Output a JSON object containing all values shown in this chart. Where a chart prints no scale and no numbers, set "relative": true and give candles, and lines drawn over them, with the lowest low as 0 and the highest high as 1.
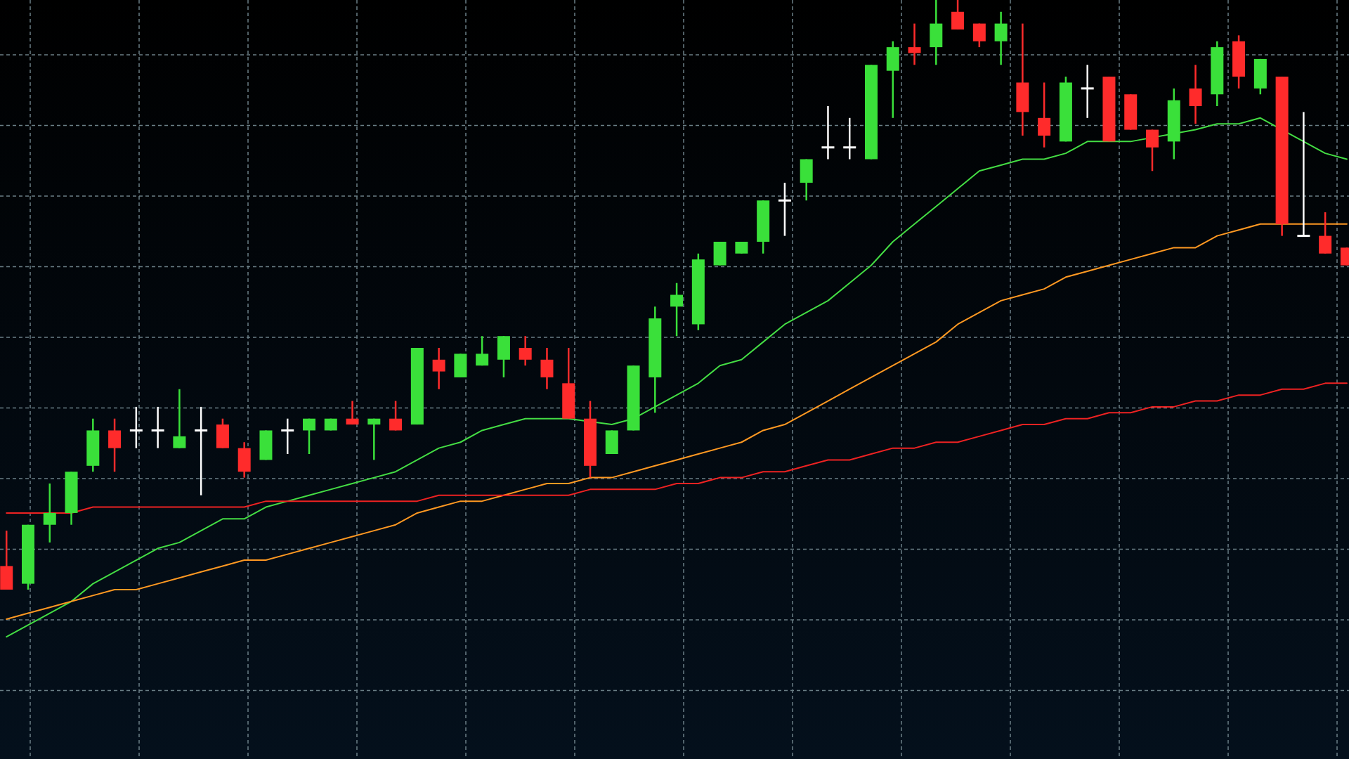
{
  "chart_data": {
    "type": "candlestick",
    "relative": true,
    "grid": true,
    "categories": [
      null,
      null,
      null,
      null,
      null,
      null,
      null,
      null,
      null,
      null,
      null,
      null,
      null,
      null,
      null,
      null,
      null,
      null,
      null,
      null,
      null,
      null,
      null,
      null,
      null,
      null,
      null,
      null,
      null,
      null,
      null,
      null,
      null,
      null,
      null,
      null,
      null,
      null,
      null,
      null,
      null,
      null,
      null,
      null,
      null,
      null,
      null,
      null,
      null,
      null,
      null,
      null,
      null,
      null,
      null,
      null,
      null,
      null,
      null,
      null,
      null,
      null,
      null
    ],
    "ohlc": [
      [
        0.04,
        0.1,
        0,
        0
      ],
      [
        0.01,
        0.11,
        0,
        0.11
      ],
      [
        0.11,
        0.18,
        0.08,
        0.13
      ],
      [
        0.13,
        0.2,
        0.11,
        0.2
      ],
      [
        0.21,
        0.29,
        0.2,
        0.27
      ],
      [
        0.27,
        0.29,
        0.2,
        0.24
      ],
      [
        0.27,
        0.31,
        0.24,
        0.27
      ],
      [
        0.27,
        0.31,
        0.24,
        0.27
      ],
      [
        0.24,
        0.34,
        0.24,
        0.26
      ],
      [
        0.27,
        0.31,
        0.16,
        0.27
      ],
      [
        0.28,
        0.29,
        0.24,
        0.24
      ],
      [
        0.24,
        0.25,
        0.19,
        0.2
      ],
      [
        0.22,
        0.27,
        0.22,
        0.27
      ],
      [
        0.27,
        0.29,
        0.23,
        0.27
      ],
      [
        0.27,
        0.29,
        0.23,
        0.29
      ],
      [
        0.27,
        0.29,
        0.27,
        0.29
      ],
      [
        0.29,
        0.32,
        0.28,
        0.28
      ],
      [
        0.28,
        0.29,
        0.22,
        0.29
      ],
      [
        0.29,
        0.32,
        0.27,
        0.27
      ],
      [
        0.28,
        0.41,
        0.28,
        0.41
      ],
      [
        0.39,
        0.41,
        0.34,
        0.37
      ],
      [
        0.36,
        0.4,
        0.36,
        0.4
      ],
      [
        0.38,
        0.43,
        0.38,
        0.4
      ],
      [
        0.39,
        0.43,
        0.36,
        0.43
      ],
      [
        0.41,
        0.43,
        0.38,
        0.39
      ],
      [
        0.39,
        0.41,
        0.34,
        0.36
      ],
      [
        0.35,
        0.41,
        0.29,
        0.29
      ],
      [
        0.29,
        0.32,
        0.19,
        0.21
      ],
      [
        0.23,
        0.27,
        0.23,
        0.27
      ],
      [
        0.27,
        0.38,
        0.27,
        0.38
      ],
      [
        0.36,
        0.48,
        0.3,
        0.46
      ],
      [
        0.48,
        0.52,
        0.43,
        0.5
      ],
      [
        0.45,
        0.57,
        0.44,
        0.56
      ],
      [
        0.55,
        0.59,
        0.55,
        0.59
      ],
      [
        0.57,
        0.59,
        0.57,
        0.59
      ],
      [
        0.59,
        0.66,
        0.57,
        0.66
      ],
      [
        0.66,
        0.69,
        0.6,
        0.66
      ],
      [
        0.69,
        0.73,
        0.66,
        0.73
      ],
      [
        0.75,
        0.82,
        0.73,
        0.75
      ],
      [
        0.75,
        0.8,
        0.73,
        0.75
      ],
      [
        0.73,
        0.89,
        0.73,
        0.89
      ],
      [
        0.88,
        0.93,
        0.8,
        0.92
      ],
      [
        0.92,
        0.96,
        0.89,
        0.91
      ],
      [
        0.92,
        1,
        0.89,
        0.96
      ],
      [
        0.98,
        1,
        0.95,
        0.95
      ],
      [
        0.96,
        0.96,
        0.92,
        0.93
      ],
      [
        0.93,
        0.98,
        0.89,
        0.96
      ],
      [
        0.86,
        0.96,
        0.77,
        0.81
      ],
      [
        0.8,
        0.86,
        0.75,
        0.77
      ],
      [
        0.76,
        0.87,
        0.76,
        0.86
      ],
      [
        0.85,
        0.89,
        0.8,
        0.85
      ],
      [
        0.87,
        0.87,
        0.76,
        0.76
      ],
      [
        0.84,
        0.84,
        0.78,
        0.78
      ],
      [
        0.78,
        0.78,
        0.71,
        0.75
      ],
      [
        0.76,
        0.85,
        0.73,
        0.83
      ],
      [
        0.85,
        0.89,
        0.79,
        0.82
      ],
      [
        0.84,
        0.93,
        0.82,
        0.92
      ],
      [
        0.93,
        0.94,
        0.85,
        0.87
      ],
      [
        0.85,
        0.9,
        0.84,
        0.9
      ],
      [
        0.87,
        0.87,
        0.6,
        0.62
      ],
      [
        0.6,
        0.81,
        0.6,
        0.6
      ],
      [
        0.6,
        0.64,
        0.57,
        0.57
      ],
      [
        0.58,
        0.58,
        0.55,
        0.55
      ]
    ],
    "colors": [
      "#ff2b2b",
      "#3ae03a",
      "#3ae03a",
      "#3ae03a",
      "#3ae03a",
      "#ff2b2b",
      "#ffffff",
      "#ffffff",
      "#3ae03a",
      "#ffffff",
      "#ff2b2b",
      "#ff2b2b",
      "#3ae03a",
      "#ffffff",
      "#3ae03a",
      "#3ae03a",
      "#ff2b2b",
      "#3ae03a",
      "#ff2b2b",
      "#3ae03a",
      "#ff2b2b",
      "#3ae03a",
      "#3ae03a",
      "#3ae03a",
      "#ff2b2b",
      "#ff2b2b",
      "#ff2b2b",
      "#ff2b2b",
      "#3ae03a",
      "#3ae03a",
      "#3ae03a",
      "#3ae03a",
      "#3ae03a",
      "#3ae03a",
      "#3ae03a",
      "#3ae03a",
      "#ffffff",
      "#3ae03a",
      "#ffffff",
      "#ffffff",
      "#3ae03a",
      "#3ae03a",
      "#ff2b2b",
      "#3ae03a",
      "#ff2b2b",
      "#ff2b2b",
      "#3ae03a",
      "#ff2b2b",
      "#ff2b2b",
      "#3ae03a",
      "#ffffff",
      "#ff2b2b",
      "#ff2b2b",
      "#ff2b2b",
      "#3ae03a",
      "#ff2b2b",
      "#3ae03a",
      "#ff2b2b",
      "#3ae03a",
      "#ff2b2b",
      "#ffffff",
      "#ff2b2b",
      "#ff2b2b"
    ],
    "series": [
      {
        "type": "line",
        "color": "#44dd44",
        "values": [
          -0.08,
          -0.06,
          -0.04,
          -0.02,
          0.01,
          0.03,
          0.05,
          0.07,
          0.08,
          0.1,
          0.12,
          0.12,
          0.14,
          0.15,
          0.16,
          0.17,
          0.18,
          0.19,
          0.2,
          0.22,
          0.24,
          0.25,
          0.27,
          0.28,
          0.29,
          0.29,
          0.29,
          null,
          0.28,
          0.29,
          0.31,
          0.33,
          0.35,
          0.38,
          0.39,
          0.42,
          0.45,
          0.47,
          0.49,
          0.52,
          0.55,
          0.59,
          0.62,
          0.65,
          0.68,
          0.71,
          0.72,
          0.73,
          0.73,
          0.74,
          0.76,
          null,
          0.76,
          null,
          null,
          0.78,
          0.79,
          0.79,
          0.8,
          null,
          0.76,
          0.74,
          0.73
        ]
      },
      {
        "type": "line",
        "color": "#ff9922",
        "values": [
          -0.05,
          -0.04,
          -0.03,
          -0.02,
          -0.01,
          0,
          0,
          0.01,
          0.02,
          0.03,
          0.04,
          0.05,
          0.05,
          0.06,
          0.07,
          0.08,
          0.09,
          0.1,
          0.11,
          0.13,
          0.14,
          0.15,
          0.15,
          0.16,
          0.17,
          0.18,
          0.18,
          0.19,
          0.19,
          0.2,
          0.21,
          0.22,
          0.23,
          0.24,
          0.25,
          0.27,
          0.28,
          0.3,
          0.32,
          0.34,
          0.36,
          0.38,
          0.4,
          0.42,
          0.45,
          0.47,
          0.49,
          0.5,
          0.51,
          0.53,
          0.54,
          0.55,
          0.56,
          0.57,
          0.58,
          0.58,
          0.6,
          0.61,
          0.62,
          0.62,
          0.62,
          0.62,
          0.62
        ]
      },
      {
        "type": "line",
        "color": "#ee2222",
        "values": [
          0.13,
          0.13,
          0.13,
          0.13,
          0.14,
          0.14,
          0.14,
          0.14,
          0.14,
          0.14,
          0.14,
          0.14,
          0.15,
          0.15,
          0.15,
          0.15,
          0.15,
          0.15,
          0.15,
          0.15,
          0.16,
          0.16,
          0.16,
          0.16,
          0.16,
          0.16,
          0.16,
          0.17,
          0.17,
          0.17,
          0.17,
          0.18,
          0.18,
          0.19,
          0.19,
          0.2,
          0.2,
          0.21,
          0.22,
          0.22,
          0.23,
          0.24,
          0.24,
          0.25,
          0.25,
          0.26,
          0.27,
          0.28,
          0.28,
          0.29,
          0.29,
          0.3,
          0.3,
          0.31,
          0.31,
          0.32,
          0.32,
          0.33,
          0.33,
          0.34,
          0.34,
          0.35,
          0.35
        ]
      }
    ]
  }
}
